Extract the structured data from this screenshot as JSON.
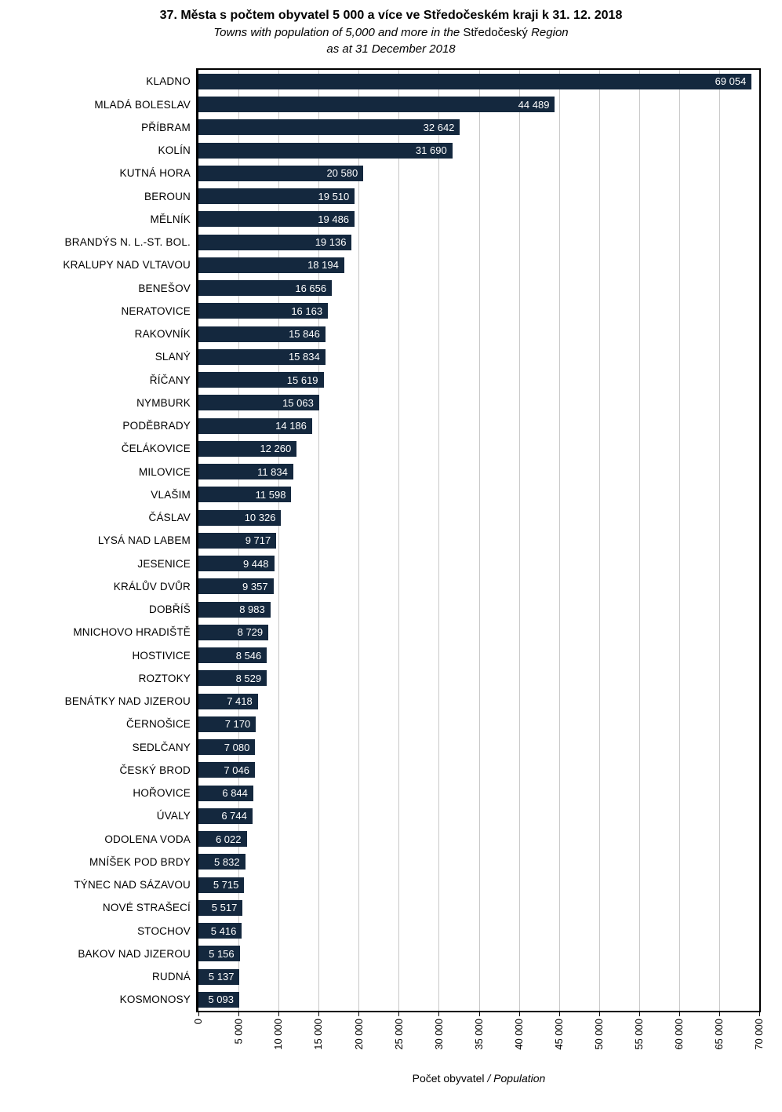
{
  "title": "37. Města s počtem obyvatel 5 000 a více ve Středočeském kraji k 31. 12. 2018",
  "subtitle": {
    "en_italic_a": "Towns with population of 5,000 and more in the ",
    "en_upright": "Středočeský",
    "en_italic_b": " Region",
    "date_line": "as at 31 December 2018"
  },
  "axis": {
    "xlabel_regular": "Počet obyvatel ",
    "xlabel_italic": "/ Population",
    "ticks": [
      "0",
      "5 000",
      "10 000",
      "15 000",
      "20 000",
      "25 000",
      "30 000",
      "35 000",
      "40 000",
      "45 000",
      "50 000",
      "55 000",
      "60 000",
      "65 000",
      "70 000"
    ]
  },
  "colors": {
    "bar": "#14283E",
    "gridline": "#C8C8C8",
    "border": "#000000",
    "value_text": "#FFFFFF"
  },
  "chart_data": {
    "type": "bar",
    "orientation": "horizontal",
    "title": "37. Města s počtem obyvatel 5 000 a více ve Středočeském kraji k 31. 12. 2018",
    "subtitle_en": "Towns with population of 5,000 and more in the Středočeský Region as at 31 December 2018",
    "xlabel": "Počet obyvatel / Population",
    "xlim": [
      0,
      70000
    ],
    "xtick_interval": 5000,
    "grid": true,
    "legend": false,
    "categories": [
      "KLADNO",
      "MLADÁ BOLESLAV",
      "PŘÍBRAM",
      "KOLÍN",
      "KUTNÁ HORA",
      "BEROUN",
      "MĚLNÍK",
      "BRANDÝS N. L.-ST. BOL.",
      "KRALUPY NAD VLTAVOU",
      "BENEŠOV",
      "NERATOVICE",
      "RAKOVNÍK",
      "SLANÝ",
      "ŘÍČANY",
      "NYMBURK",
      "PODĚBRADY",
      "ČELÁKOVICE",
      "MILOVICE",
      "VLAŠIM",
      "ČÁSLAV",
      "LYSÁ NAD LABEM",
      "JESENICE",
      "KRÁLŮV DVŮR",
      "DOBŘÍŠ",
      "MNICHOVO HRADIŠTĚ",
      "HOSTIVICE",
      "ROZTOKY",
      "BENÁTKY NAD JIZEROU",
      "ČERNOŠICE",
      "SEDLČANY",
      "ČESKÝ BROD",
      "HOŘOVICE",
      "ÚVALY",
      "ODOLENA VODA",
      "MNÍŠEK POD BRDY",
      "TÝNEC NAD SÁZAVOU",
      "NOVÉ STRAŠECÍ",
      "STOCHOV",
      "BAKOV NAD JIZEROU",
      "RUDNÁ",
      "KOSMONOSY"
    ],
    "values": [
      69054,
      44489,
      32642,
      31690,
      20580,
      19510,
      19486,
      19136,
      18194,
      16656,
      16163,
      15846,
      15834,
      15619,
      15063,
      14186,
      12260,
      11834,
      11598,
      10326,
      9717,
      9448,
      9357,
      8983,
      8729,
      8546,
      8529,
      7418,
      7170,
      7080,
      7046,
      6844,
      6744,
      6022,
      5832,
      5715,
      5517,
      5416,
      5156,
      5137,
      5093
    ],
    "value_labels": [
      "69 054",
      "44 489",
      "32 642",
      "31 690",
      "20 580",
      "19 510",
      "19 486",
      "19 136",
      "18 194",
      "16 656",
      "16 163",
      "15 846",
      "15 834",
      "15 619",
      "15 063",
      "14 186",
      "12 260",
      "11 834",
      "11 598",
      "10 326",
      "9 717",
      "9 448",
      "9 357",
      "8 983",
      "8 729",
      "8 546",
      "8 529",
      "7 418",
      "7 170",
      "7 080",
      "7 046",
      "6 844",
      "6 744",
      "6 022",
      "5 832",
      "5 715",
      "5 517",
      "5 416",
      "5 156",
      "5 137",
      "5 093"
    ]
  }
}
